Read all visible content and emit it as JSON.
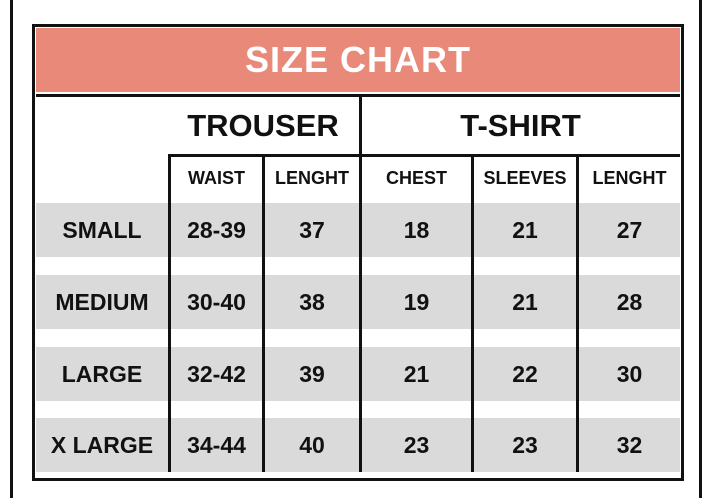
{
  "title": "SIZE CHART",
  "groups": {
    "trouser": "TROUSER",
    "tshirt": "T-SHIRT"
  },
  "columns": [
    "WAIST",
    "LENGHT",
    "CHEST",
    "SLEEVES",
    "LENGHT"
  ],
  "rows": [
    {
      "size": "SMALL",
      "values": [
        "28-39",
        "37",
        "18",
        "21",
        "27"
      ]
    },
    {
      "size": "MEDIUM",
      "values": [
        "30-40",
        "38",
        "19",
        "21",
        "28"
      ]
    },
    {
      "size": "LARGE",
      "values": [
        "32-42",
        "39",
        "21",
        "22",
        "30"
      ]
    },
    {
      "size": "X LARGE",
      "values": [
        "34-44",
        "40",
        "23",
        "23",
        "32"
      ]
    }
  ],
  "colors": {
    "header": "#e8897a",
    "row_stripe": "#dadada",
    "border": "#111111"
  }
}
